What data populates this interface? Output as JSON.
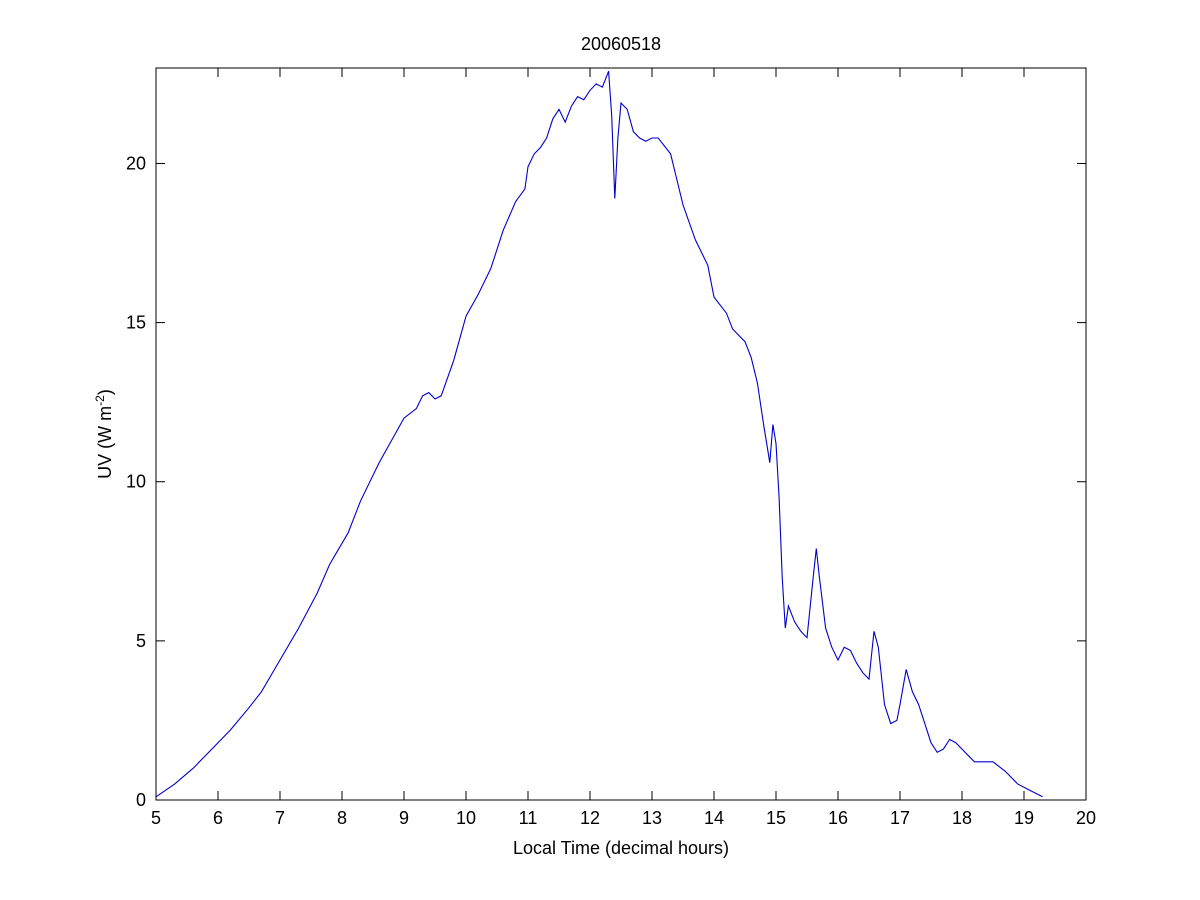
{
  "chart_data": {
    "type": "line",
    "title": "20060518",
    "xlabel": "Local Time (decimal hours)",
    "ylabel_prefix": "UV (W m",
    "ylabel_exponent": "-2",
    "ylabel_suffix": ")",
    "xlim": [
      5,
      20
    ],
    "ylim": [
      0,
      23
    ],
    "xticks": [
      5,
      6,
      7,
      8,
      9,
      10,
      11,
      12,
      13,
      14,
      15,
      16,
      17,
      18,
      19,
      20
    ],
    "yticks": [
      0,
      5,
      10,
      15,
      20
    ],
    "grid": false,
    "line_color": "#0000cc",
    "series": [
      {
        "x": [
          5.0,
          5.3,
          5.6,
          5.9,
          6.2,
          6.5,
          6.7,
          7.0,
          7.3,
          7.6,
          7.8,
          8.1,
          8.3,
          8.6,
          8.8,
          9.0,
          9.2,
          9.3,
          9.4,
          9.5,
          9.6,
          9.8,
          10.0,
          10.2,
          10.4,
          10.6,
          10.8,
          10.95,
          11.0,
          11.1,
          11.2,
          11.3,
          11.4,
          11.5,
          11.6,
          11.7,
          11.8,
          11.9,
          12.0,
          12.1,
          12.2,
          12.3,
          12.35,
          12.4,
          12.45,
          12.5,
          12.6,
          12.7,
          12.8,
          12.9,
          13.0,
          13.1,
          13.3,
          13.5,
          13.7,
          13.9,
          14.0,
          14.2,
          14.3,
          14.5,
          14.6,
          14.7,
          14.8,
          14.9,
          14.95,
          15.0,
          15.05,
          15.1,
          15.15,
          15.2,
          15.3,
          15.4,
          15.5,
          15.6,
          15.65,
          15.7,
          15.8,
          15.9,
          16.0,
          16.1,
          16.2,
          16.3,
          16.4,
          16.5,
          16.58,
          16.65,
          16.75,
          16.85,
          16.95,
          17.0,
          17.1,
          17.2,
          17.3,
          17.4,
          17.5,
          17.6,
          17.7,
          17.8,
          17.9,
          18.0,
          18.2,
          18.5,
          18.7,
          18.9,
          19.1,
          19.3
        ],
        "y": [
          0.1,
          0.5,
          1.0,
          1.6,
          2.2,
          2.9,
          3.4,
          4.4,
          5.4,
          6.5,
          7.4,
          8.4,
          9.4,
          10.6,
          11.3,
          12.0,
          12.3,
          12.7,
          12.8,
          12.6,
          12.7,
          13.8,
          15.2,
          15.9,
          16.7,
          17.9,
          18.8,
          19.2,
          19.9,
          20.3,
          20.5,
          20.8,
          21.4,
          21.7,
          21.3,
          21.8,
          22.1,
          22.0,
          22.3,
          22.5,
          22.4,
          22.9,
          21.5,
          18.9,
          20.8,
          21.9,
          21.7,
          21.0,
          20.8,
          20.7,
          20.8,
          20.8,
          20.3,
          18.7,
          17.6,
          16.8,
          15.8,
          15.3,
          14.8,
          14.4,
          13.9,
          13.1,
          11.8,
          10.6,
          11.8,
          11.2,
          9.5,
          7.0,
          5.4,
          6.1,
          5.6,
          5.3,
          5.1,
          7.0,
          7.9,
          7.0,
          5.4,
          4.8,
          4.4,
          4.8,
          4.7,
          4.3,
          4.0,
          3.8,
          5.3,
          4.8,
          3.0,
          2.4,
          2.5,
          3.0,
          4.1,
          3.4,
          3.0,
          2.4,
          1.8,
          1.5,
          1.6,
          1.9,
          1.8,
          1.6,
          1.2,
          1.2,
          0.9,
          0.5,
          0.3,
          0.1
        ]
      }
    ]
  }
}
